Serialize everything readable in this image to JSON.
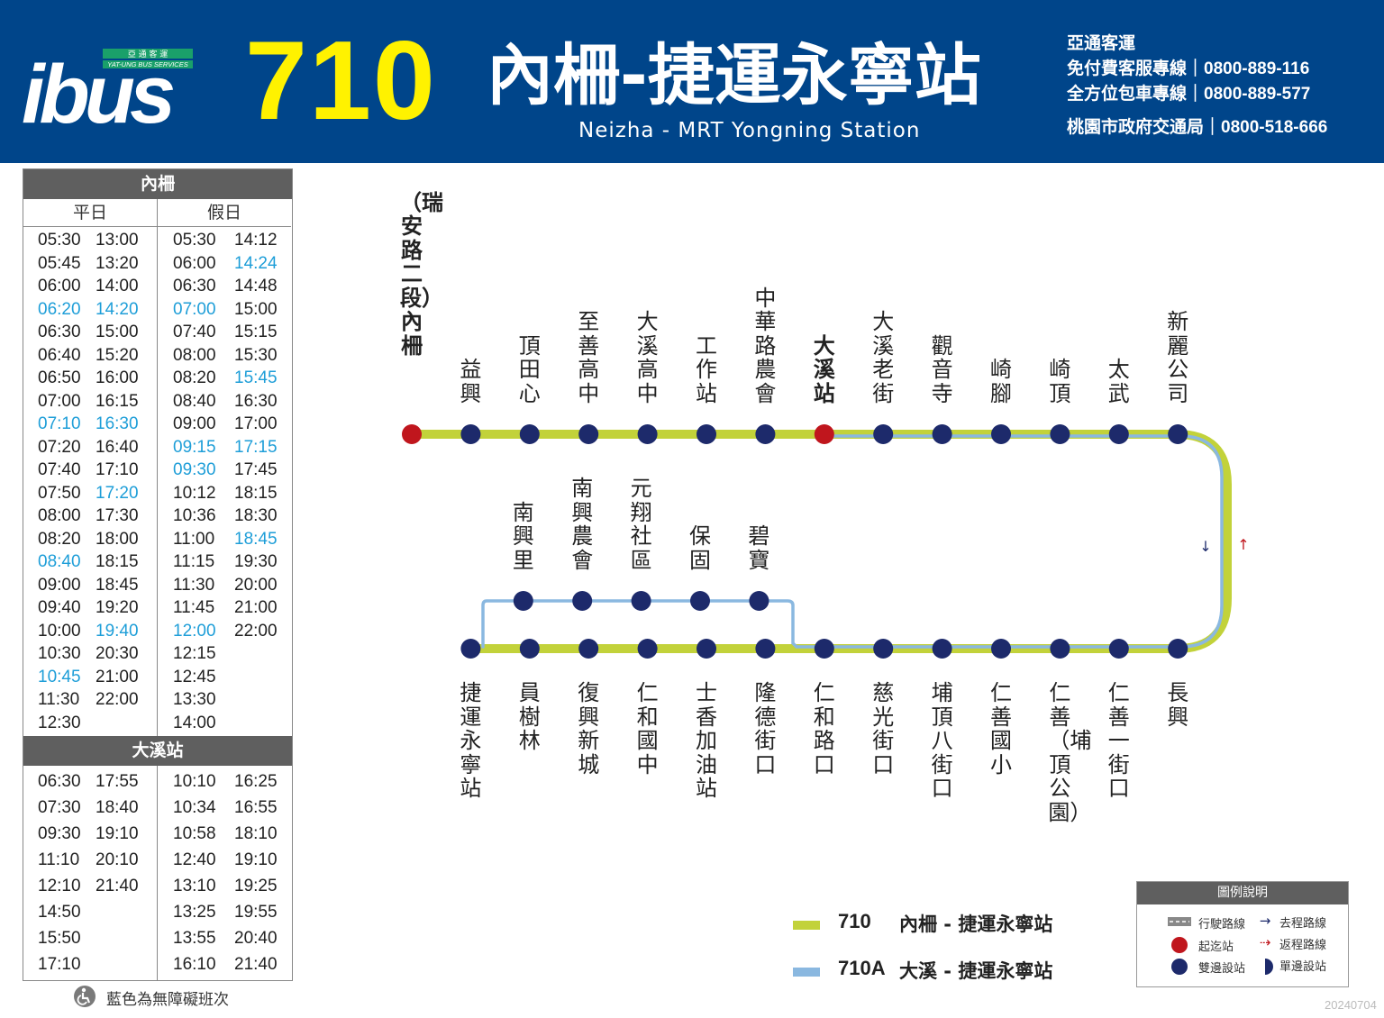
{
  "header": {
    "operator_logo_cn": "亞 通 客 運",
    "operator_logo_en": "YAT-UNG BUS SERVICES",
    "logo_mark": "ibus",
    "route_number": "710",
    "route_name": "內柵-捷運永寧站",
    "route_name_en": "Neizha - MRT Yongning Station",
    "company": "亞通客運",
    "hotlines": [
      {
        "label": "免付費客服專線｜",
        "number": "0800-889-116"
      },
      {
        "label": "全方位包車專線｜",
        "number": "0800-889-577"
      },
      {
        "label": "桃園市政府交通局｜",
        "number": "0800-518-666"
      }
    ]
  },
  "timetable": {
    "neizha": {
      "title": "內柵",
      "weekday_label": "平日",
      "holiday_label": "假日",
      "weekday": [
        "05:30",
        "05:45",
        "06:00",
        "06:20",
        "06:30",
        "06:40",
        "06:50",
        "07:00",
        "07:10",
        "07:20",
        "07:40",
        "07:50",
        "08:00",
        "08:20",
        "08:40",
        "09:00",
        "09:40",
        "10:00",
        "10:30",
        "10:45",
        "11:30",
        "12:30",
        "13:00",
        "13:20",
        "14:00",
        "14:20",
        "15:00",
        "15:20",
        "16:00",
        "16:15",
        "16:30",
        "16:40",
        "17:10",
        "17:20",
        "17:30",
        "18:00",
        "18:15",
        "18:45",
        "19:20",
        "19:40",
        "20:30",
        "21:00",
        "22:00"
      ],
      "weekday_accessible": [
        false,
        false,
        false,
        true,
        false,
        false,
        false,
        false,
        true,
        false,
        false,
        false,
        false,
        false,
        true,
        false,
        false,
        false,
        false,
        true,
        false,
        false,
        false,
        false,
        false,
        true,
        false,
        false,
        false,
        false,
        true,
        false,
        false,
        true,
        false,
        false,
        false,
        false,
        false,
        true,
        false,
        false,
        false
      ],
      "holiday": [
        "05:30",
        "06:00",
        "06:30",
        "07:00",
        "07:40",
        "08:00",
        "08:20",
        "08:40",
        "09:00",
        "09:15",
        "09:30",
        "10:12",
        "10:36",
        "11:00",
        "11:15",
        "11:30",
        "11:45",
        "12:00",
        "12:15",
        "12:45",
        "13:30",
        "14:00",
        "14:12",
        "14:24",
        "14:48",
        "15:00",
        "15:15",
        "15:30",
        "15:45",
        "16:30",
        "17:00",
        "17:15",
        "17:45",
        "18:15",
        "18:30",
        "18:45",
        "19:30",
        "20:00",
        "21:00",
        "22:00"
      ],
      "holiday_accessible": [
        false,
        false,
        false,
        true,
        false,
        false,
        false,
        false,
        false,
        true,
        true,
        false,
        false,
        false,
        false,
        false,
        false,
        true,
        false,
        false,
        false,
        false,
        false,
        true,
        false,
        false,
        false,
        false,
        true,
        false,
        false,
        true,
        false,
        false,
        false,
        true,
        false,
        false,
        false,
        false
      ]
    },
    "daxi": {
      "title": "大溪站",
      "weekday": [
        "06:30",
        "07:30",
        "09:30",
        "11:10",
        "12:10",
        "14:50",
        "15:50",
        "17:10",
        "17:55",
        "18:40",
        "19:10",
        "20:10",
        "21:40"
      ],
      "holiday": [
        "10:10",
        "10:34",
        "10:58",
        "12:40",
        "13:10",
        "13:25",
        "13:55",
        "16:10",
        "16:25",
        "16:55",
        "18:10",
        "19:10",
        "19:25",
        "19:55",
        "20:40",
        "21:40"
      ]
    },
    "footnote": "藍色為無障礙班次"
  },
  "map": {
    "top_stops": [
      {
        "name": "（瑞安路二段）內柵",
        "type": "terminal"
      },
      {
        "name": "益興",
        "type": "both"
      },
      {
        "name": "頂田心",
        "type": "both"
      },
      {
        "name": "至善高中",
        "type": "both"
      },
      {
        "name": "大溪高中",
        "type": "both"
      },
      {
        "name": "工作站",
        "type": "both"
      },
      {
        "name": "中華路農會",
        "type": "both"
      },
      {
        "name": "大溪站",
        "type": "terminal"
      },
      {
        "name": "大溪老街",
        "type": "both"
      },
      {
        "name": "觀音寺",
        "type": "both"
      },
      {
        "name": "崎腳",
        "type": "both"
      },
      {
        "name": "崎頂",
        "type": "both"
      },
      {
        "name": "太武",
        "type": "both"
      },
      {
        "name": "新麗公司",
        "type": "both"
      }
    ],
    "upper_loop_stops": [
      {
        "name": "南興里"
      },
      {
        "name": "南興農會"
      },
      {
        "name": "元翔社區"
      },
      {
        "name": "保固"
      },
      {
        "name": "碧寶"
      }
    ],
    "bottom_stops": [
      {
        "name": "捷運永寧站"
      },
      {
        "name": "員樹林"
      },
      {
        "name": "復興新城"
      },
      {
        "name": "仁和國中"
      },
      {
        "name": "士香加油站"
      },
      {
        "name": "隆德街口"
      },
      {
        "name": "仁和路口"
      },
      {
        "name": "慈光街口"
      },
      {
        "name": "埔頂八街口"
      },
      {
        "name": "仁善國小"
      },
      {
        "name": "仁善（埔頂公園）"
      },
      {
        "name": "仁善一街口"
      },
      {
        "name": "長興"
      }
    ],
    "colors": {
      "route_710": "#c2d23a",
      "route_710A": "#8ab8e0",
      "stop": "#1d2a6b",
      "terminal": "#c0161d",
      "header": "#00458a",
      "accessible": "#1e9ed8",
      "outbound_arrow": "#1d2a6b",
      "return_arrow": "#c0161d"
    }
  },
  "legend_routes": [
    {
      "code": "710",
      "desc": "內柵 - 捷運永寧站",
      "color": "#c2d23a"
    },
    {
      "code": "710A",
      "desc": "大溪 - 捷運永寧站",
      "color": "#8ab8e0"
    }
  ],
  "legend_box": {
    "title": "圖例說明",
    "route_line": "行駛路線",
    "outbound": "去程路線",
    "terminal": "起迄站",
    "return": "返程路線",
    "both_sides": "雙邊設站",
    "one_side": "單邊設站"
  },
  "version": "20240704"
}
